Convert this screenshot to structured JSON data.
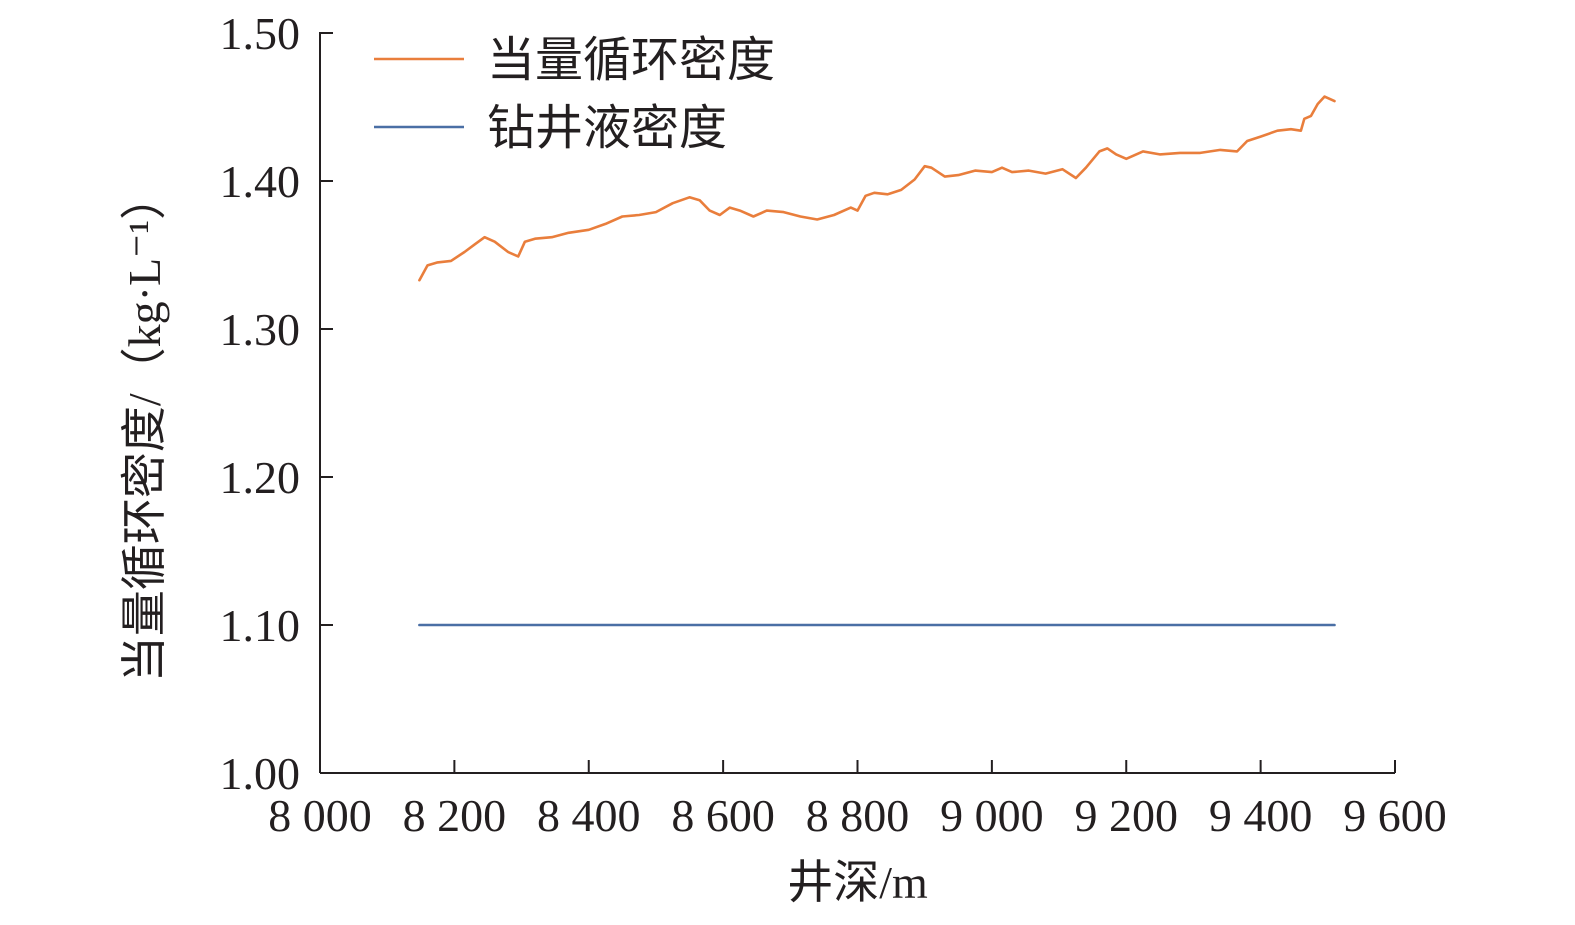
{
  "chart_data": {
    "type": "line",
    "title": "",
    "xlabel": "井深/m",
    "ylabel": "当量循环密度/（kg·L⁻¹）",
    "xlim": [
      8000,
      9600
    ],
    "ylim": [
      1.0,
      1.5
    ],
    "x_ticks": [
      8000,
      8200,
      8400,
      8600,
      8800,
      9000,
      9200,
      9400,
      9600
    ],
    "x_tick_labels": [
      "8 000",
      "8 200",
      "8 400",
      "8 600",
      "8 800",
      "9 000",
      "9 200",
      "9 400",
      "9 600"
    ],
    "y_ticks": [
      1.0,
      1.1,
      1.2,
      1.3,
      1.4,
      1.5
    ],
    "y_tick_labels": [
      "1.00",
      "1.10",
      "1.20",
      "1.30",
      "1.40",
      "1.50"
    ],
    "grid": false,
    "legend_position": "top-left",
    "series": [
      {
        "name": "当量循环密度",
        "color": "#e97e3c",
        "points": [
          [
            8148,
            1.333
          ],
          [
            8160,
            1.343
          ],
          [
            8175,
            1.345
          ],
          [
            8195,
            1.346
          ],
          [
            8215,
            1.352
          ],
          [
            8230,
            1.357
          ],
          [
            8245,
            1.362
          ],
          [
            8260,
            1.359
          ],
          [
            8280,
            1.352
          ],
          [
            8295,
            1.349
          ],
          [
            8305,
            1.359
          ],
          [
            8320,
            1.361
          ],
          [
            8345,
            1.362
          ],
          [
            8370,
            1.365
          ],
          [
            8400,
            1.367
          ],
          [
            8425,
            1.371
          ],
          [
            8450,
            1.376
          ],
          [
            8475,
            1.377
          ],
          [
            8500,
            1.379
          ],
          [
            8525,
            1.385
          ],
          [
            8550,
            1.389
          ],
          [
            8565,
            1.387
          ],
          [
            8580,
            1.38
          ],
          [
            8595,
            1.377
          ],
          [
            8610,
            1.382
          ],
          [
            8625,
            1.38
          ],
          [
            8645,
            1.376
          ],
          [
            8665,
            1.38
          ],
          [
            8690,
            1.379
          ],
          [
            8715,
            1.376
          ],
          [
            8740,
            1.374
          ],
          [
            8765,
            1.377
          ],
          [
            8790,
            1.382
          ],
          [
            8800,
            1.38
          ],
          [
            8812,
            1.39
          ],
          [
            8825,
            1.392
          ],
          [
            8845,
            1.391
          ],
          [
            8865,
            1.394
          ],
          [
            8885,
            1.401
          ],
          [
            8900,
            1.41
          ],
          [
            8910,
            1.409
          ],
          [
            8930,
            1.403
          ],
          [
            8950,
            1.404
          ],
          [
            8975,
            1.407
          ],
          [
            9000,
            1.406
          ],
          [
            9015,
            1.409
          ],
          [
            9030,
            1.406
          ],
          [
            9055,
            1.407
          ],
          [
            9080,
            1.405
          ],
          [
            9105,
            1.408
          ],
          [
            9125,
            1.402
          ],
          [
            9140,
            1.409
          ],
          [
            9160,
            1.42
          ],
          [
            9172,
            1.422
          ],
          [
            9185,
            1.418
          ],
          [
            9200,
            1.415
          ],
          [
            9225,
            1.42
          ],
          [
            9250,
            1.418
          ],
          [
            9280,
            1.419
          ],
          [
            9310,
            1.419
          ],
          [
            9340,
            1.421
          ],
          [
            9365,
            1.42
          ],
          [
            9380,
            1.427
          ],
          [
            9400,
            1.43
          ],
          [
            9425,
            1.434
          ],
          [
            9445,
            1.435
          ],
          [
            9460,
            1.434
          ],
          [
            9465,
            1.442
          ],
          [
            9475,
            1.444
          ],
          [
            9485,
            1.452
          ],
          [
            9495,
            1.457
          ],
          [
            9505,
            1.455
          ],
          [
            9510,
            1.454
          ]
        ]
      },
      {
        "name": "钻井液密度",
        "color": "#4a6fa5",
        "points": [
          [
            8148,
            1.1
          ],
          [
            9510,
            1.1
          ]
        ]
      }
    ]
  }
}
